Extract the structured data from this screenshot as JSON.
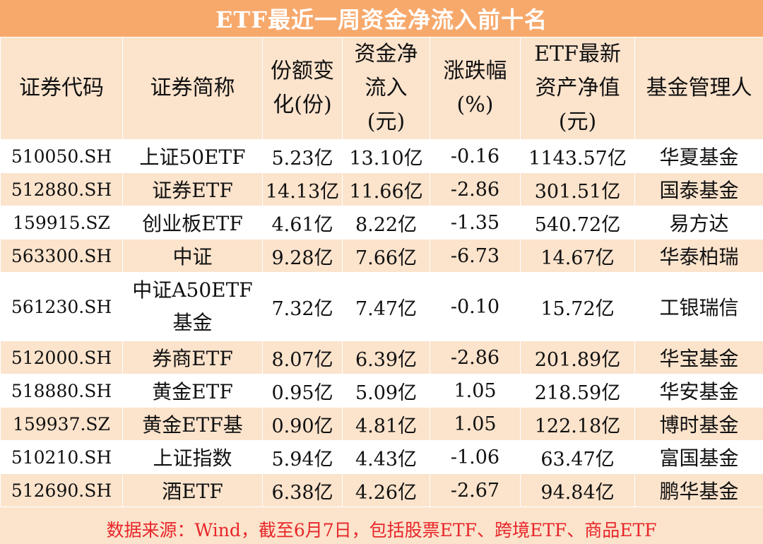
{
  "title": "ETF最近一周资金净流入前十名",
  "headers": [
    [
      "证券代码"
    ],
    [
      "证券简称"
    ],
    [
      "份额变",
      "化(份)"
    ],
    [
      "资金净",
      "流入",
      "(元)"
    ],
    [
      "涨跌幅",
      "(%)"
    ],
    [
      "ETF最新",
      "资产净值",
      "(元)"
    ],
    [
      "基金管理人"
    ]
  ],
  "rows": [
    {
      "code": "510050.SH",
      "name": "上证50ETF",
      "share_change": "5.23亿",
      "net_inflow": "13.10亿",
      "change_pct": "-0.16",
      "nav": "1143.57亿",
      "manager": "华夏基金"
    },
    {
      "code": "512880.SH",
      "name": "证券ETF",
      "share_change": "14.13亿",
      "net_inflow": "11.66亿",
      "change_pct": "-2.86",
      "nav": "301.51亿",
      "manager": "国泰基金"
    },
    {
      "code": "159915.SZ",
      "name": "创业板ETF",
      "share_change": "4.61亿",
      "net_inflow": "8.22亿",
      "change_pct": "-1.35",
      "nav": "540.72亿",
      "manager": "易方达"
    },
    {
      "code": "563300.SH",
      "name": "中证",
      "share_change": "9.28亿",
      "net_inflow": "7.66亿",
      "change_pct": "-6.73",
      "nav": "14.67亿",
      "manager": "华泰柏瑞"
    },
    {
      "code": "561230.SH",
      "name": "中证A50ETF基金",
      "share_change": "7.32亿",
      "net_inflow": "7.47亿",
      "change_pct": "-0.10",
      "nav": "15.72亿",
      "manager": "工银瑞信"
    },
    {
      "code": "512000.SH",
      "name": "券商ETF",
      "share_change": "8.07亿",
      "net_inflow": "6.39亿",
      "change_pct": "-2.86",
      "nav": "201.89亿",
      "manager": "华宝基金"
    },
    {
      "code": "518880.SH",
      "name": "黄金ETF",
      "share_change": "0.95亿",
      "net_inflow": "5.09亿",
      "change_pct": "1.05",
      "nav": "218.59亿",
      "manager": "华安基金"
    },
    {
      "code": "159937.SZ",
      "name": "黄金ETF基",
      "share_change": "0.90亿",
      "net_inflow": "4.81亿",
      "change_pct": "1.05",
      "nav": "122.18亿",
      "manager": "博时基金"
    },
    {
      "code": "510210.SH",
      "name": "上证指数",
      "share_change": "5.94亿",
      "net_inflow": "4.43亿",
      "change_pct": "-1.06",
      "nav": "63.47亿",
      "manager": "富国基金"
    },
    {
      "code": "512690.SH",
      "name": "酒ETF",
      "share_change": "6.38亿",
      "net_inflow": "4.26亿",
      "change_pct": "-2.67",
      "nav": "94.84亿",
      "manager": "鹏华基金"
    }
  ],
  "footer": "数据来源：Wind，截至6月7日，包括股票ETF、跨境ETF、商品ETF",
  "colors": {
    "title_bg": "#f7a96c",
    "band_bg": "#fbe3cc",
    "footer_text": "#e8262a"
  }
}
